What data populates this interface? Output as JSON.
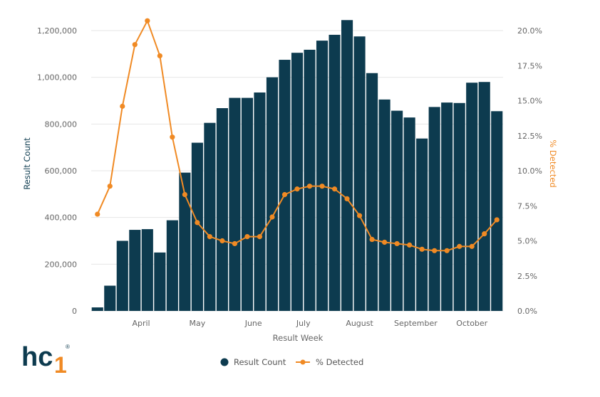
{
  "chart_data": {
    "type": "bar+line",
    "xlabel": "Result Week",
    "ylabel_left": "Result Count",
    "ylabel_right": "% Detected",
    "ylim_left": [
      0,
      1200000
    ],
    "ylim_right": [
      0,
      20
    ],
    "left_ticks": [
      "0",
      "200,000",
      "400,000",
      "600,000",
      "800,000",
      "1,000,000",
      "1,200,000"
    ],
    "right_ticks": [
      "0.0%",
      "2.5%",
      "5.0%",
      "7.5%",
      "10.0%",
      "12.5%",
      "15.0%",
      "17.5%",
      "20.0%"
    ],
    "month_labels": [
      {
        "label": "April",
        "week": 4
      },
      {
        "label": "May",
        "week": 8.5
      },
      {
        "label": "June",
        "week": 13
      },
      {
        "label": "July",
        "week": 17
      },
      {
        "label": "August",
        "week": 21.5
      },
      {
        "label": "September",
        "week": 26
      },
      {
        "label": "October",
        "week": 30.5
      }
    ],
    "series": [
      {
        "name": "Result Count",
        "type": "bar",
        "axis": "left",
        "color": "#0d3b4f",
        "values": [
          15000,
          108000,
          300000,
          347000,
          350000,
          250000,
          388000,
          592000,
          720000,
          805000,
          868000,
          912000,
          912000,
          935000,
          1000000,
          1075000,
          1105000,
          1118000,
          1157000,
          1182000,
          1245000,
          1175000,
          1018000,
          905000,
          857000,
          828000,
          738000,
          873000,
          892000,
          890000,
          977000,
          980000,
          855000
        ]
      },
      {
        "name": "% Detected",
        "type": "line",
        "axis": "right",
        "color": "#f08a24",
        "values": [
          6.9,
          8.9,
          14.6,
          19.0,
          20.7,
          18.2,
          12.4,
          8.3,
          6.3,
          5.3,
          5.0,
          4.8,
          5.3,
          5.3,
          6.7,
          8.3,
          8.7,
          8.9,
          8.9,
          8.7,
          8.0,
          6.8,
          5.1,
          4.9,
          4.8,
          4.7,
          4.4,
          4.3,
          4.3,
          4.6,
          4.6,
          5.5,
          6.5
        ]
      }
    ],
    "legend": [
      "Result Count",
      "% Detected"
    ],
    "legend_position": "bottom"
  },
  "colors": {
    "bar": "#0d3b4f",
    "line": "#f08a24",
    "grid": "#e6e6e6",
    "left_title": "#0d3b4f",
    "right_title": "#f08a24"
  },
  "logo": {
    "text_main": "hc",
    "text_accent": "1",
    "mark": "®"
  }
}
